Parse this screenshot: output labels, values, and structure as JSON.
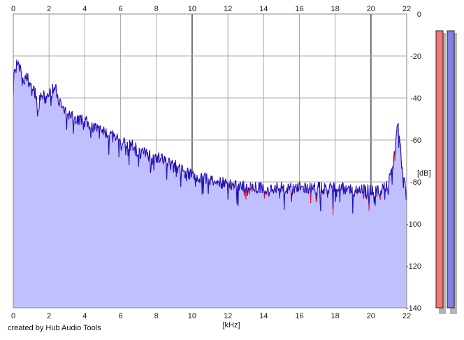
{
  "footer": {
    "credit": "created by Hub Audio Tools"
  },
  "chart_data": {
    "type": "area",
    "title": "",
    "xlabel": "[kHz]",
    "ylabel": "[dB]",
    "xlim": [
      0,
      22
    ],
    "ylim": [
      -140,
      0
    ],
    "x_ticks": [
      "0",
      "2",
      "4",
      "6",
      "8",
      "10",
      "12",
      "14",
      "16",
      "18",
      "20",
      "22"
    ],
    "y_ticks": [
      "0",
      "-20",
      "-40",
      "-60",
      "-80",
      "-100",
      "-120",
      "-140"
    ],
    "grid": true,
    "colors": {
      "fill": "#c0c0ff",
      "line_left": "#e0141e",
      "line_right": "#1414c8",
      "meter_left": "#f07878",
      "meter_right": "#8080e6"
    },
    "series": [
      {
        "x": [
          0,
          0.2,
          0.4,
          0.6,
          0.8,
          1.0,
          1.2,
          1.4,
          1.6,
          1.8,
          2.0,
          2.2,
          2.4,
          2.6,
          2.8,
          3.0,
          3.5,
          4.0,
          4.5,
          5.0,
          5.5,
          6.0,
          6.5,
          7.0,
          7.5,
          8.0,
          8.5,
          9.0,
          9.5,
          10.0,
          10.5,
          11.0,
          11.5,
          12.0,
          12.5,
          13.0,
          13.5,
          14.0,
          14.5,
          15.0,
          15.5,
          16.0,
          16.5,
          17.0,
          17.5,
          18.0,
          18.5,
          19.0,
          19.5,
          20.0,
          20.3,
          20.6,
          20.9,
          21.1,
          21.3,
          21.5,
          21.6,
          21.7,
          21.8,
          21.9,
          22.0
        ],
        "values": [
          -30,
          -24,
          -27,
          -32,
          -30,
          -36,
          -37,
          -44,
          -38,
          -41,
          -38,
          -36,
          -36,
          -42,
          -46,
          -48,
          -50,
          -51,
          -54,
          -56,
          -58,
          -61,
          -62,
          -65,
          -67,
          -68,
          -70,
          -72,
          -75,
          -77,
          -78,
          -79,
          -80,
          -81,
          -82,
          -82,
          -83,
          -83,
          -83,
          -83,
          -83,
          -83,
          -83,
          -83,
          -83,
          -83,
          -83,
          -84,
          -84,
          -84,
          -84,
          -84,
          -82,
          -78,
          -68,
          -52,
          -57,
          -70,
          -78,
          -82,
          -84
        ]
      }
    ],
    "level_meters": [
      {
        "value_db": -8
      },
      {
        "value_db": -8
      }
    ]
  }
}
